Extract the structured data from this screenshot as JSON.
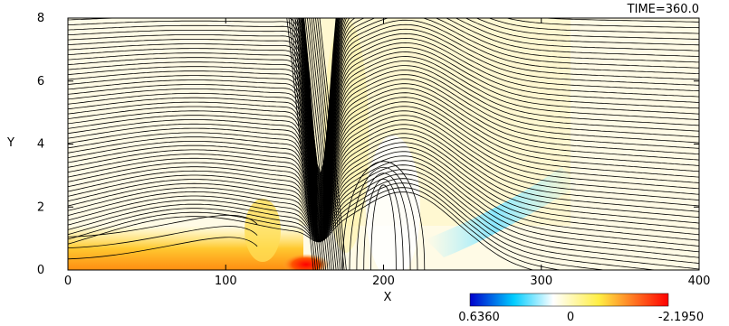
{
  "chart_data": {
    "type": "heatmap",
    "title": "TIME=360.0",
    "xlabel": "X",
    "ylabel": "Y",
    "xlim": [
      0,
      400
    ],
    "ylim": [
      0,
      8
    ],
    "x_ticks": [
      "0",
      "100",
      "200",
      "300",
      "400"
    ],
    "y_ticks": [
      "0",
      "2",
      "4",
      "6",
      "8"
    ],
    "colorbar": {
      "labels": [
        "0.6360",
        "0",
        "-2.1950"
      ],
      "min": 0.636,
      "max": -2.195,
      "colors": [
        "#0000cc",
        "#00ccff",
        "#ffffff",
        "#ffee44",
        "#ff0000"
      ]
    },
    "features": [
      {
        "name": "vertical current sheet",
        "x": 160,
        "y_range": [
          0,
          8
        ]
      },
      {
        "name": "magnetic island",
        "x": 200,
        "y_range": [
          0.3,
          3.5
        ]
      },
      {
        "name": "cyan band",
        "x_range": [
          220,
          320
        ],
        "y_range": [
          1.5,
          3
        ]
      },
      {
        "name": "red spot",
        "x_range": [
          130,
          150
        ],
        "y_range": [
          0,
          0.3
        ]
      }
    ]
  }
}
